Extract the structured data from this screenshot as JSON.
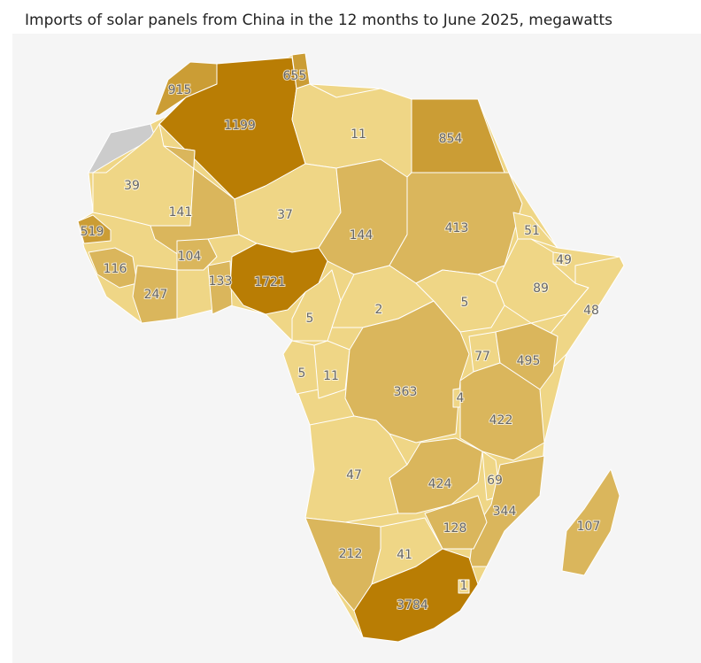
{
  "chart_data": {
    "type": "choropleth",
    "title": "Imports of solar panels from China in the 12 months to June 2025, megawatts",
    "regions": [
      {
        "value": 915,
        "color": "#cb9d35"
      },
      {
        "value": 1199,
        "color": "#b97d04"
      },
      {
        "value": 655,
        "color": "#cb9d35"
      },
      {
        "value": 11,
        "color": "#efd686"
      },
      {
        "value": 854,
        "color": "#cb9d35"
      },
      {
        "value": 39,
        "color": "#efd686"
      },
      {
        "value": 141,
        "color": "#dab65c"
      },
      {
        "value": 37,
        "color": "#efd686"
      },
      {
        "value": 144,
        "color": "#dab65c"
      },
      {
        "value": 413,
        "color": "#dab65c"
      },
      {
        "value": 51,
        "color": "#efd686"
      },
      {
        "value": 49,
        "color": "#efd686"
      },
      {
        "value": 89,
        "color": "#efd686"
      },
      {
        "value": 48,
        "color": "#efd686"
      },
      {
        "value": 519,
        "color": "#cb9d35"
      },
      {
        "value": 116,
        "color": "#dab65c"
      },
      {
        "value": 104,
        "color": "#dab65c"
      },
      {
        "value": 247,
        "color": "#dab65c"
      },
      {
        "value": 133,
        "color": "#dab65c"
      },
      {
        "value": 1721,
        "color": "#b97d04"
      },
      {
        "value": 5,
        "color": "#efd686"
      },
      {
        "value": 2,
        "color": "#efd686"
      },
      {
        "value": 5,
        "color": "#efd686"
      },
      {
        "value": 5,
        "color": "#efd686"
      },
      {
        "value": 11,
        "color": "#efd686"
      },
      {
        "value": 363,
        "color": "#dab65c"
      },
      {
        "value": 77,
        "color": "#efd686"
      },
      {
        "value": 4,
        "color": "#efd686"
      },
      {
        "value": 495,
        "color": "#dab65c"
      },
      {
        "value": 422,
        "color": "#dab65c"
      },
      {
        "value": 47,
        "color": "#efd686"
      },
      {
        "value": 424,
        "color": "#dab65c"
      },
      {
        "value": 69,
        "color": "#efd686"
      },
      {
        "value": 344,
        "color": "#dab65c"
      },
      {
        "value": 128,
        "color": "#dab65c"
      },
      {
        "value": 212,
        "color": "#dab65c"
      },
      {
        "value": 41,
        "color": "#efd686"
      },
      {
        "value": 3784,
        "color": "#b97d04"
      },
      {
        "value": 1,
        "color": "#efd686"
      },
      {
        "value": 107,
        "color": "#dab65c"
      }
    ]
  }
}
